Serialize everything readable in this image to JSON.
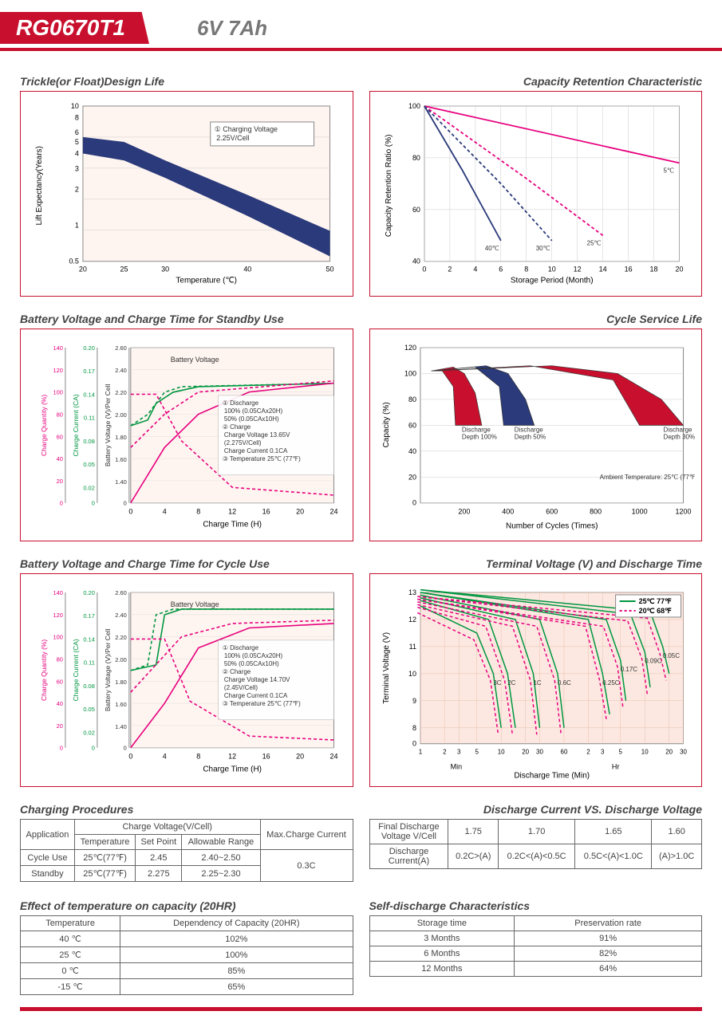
{
  "header": {
    "model": "RG0670T1",
    "rating": "6V  7Ah"
  },
  "charts": [
    {
      "id": "trickle",
      "title": "Trickle(or Float)Design Life",
      "xlabel": "Temperature (℃)",
      "ylabel": "Lift Expectancy(Years)",
      "xticks": [
        "20",
        "25",
        "30",
        "40",
        "50"
      ],
      "yticks": [
        "0.5",
        "1",
        "2",
        "3",
        "4",
        "5",
        "6",
        "8",
        "10"
      ],
      "band_color": "#2a3a7a",
      "annotation": "① Charging Voltage\n    2.25V/Cell",
      "band_top": [
        [
          20,
          5.5
        ],
        [
          25,
          5
        ],
        [
          30,
          3.5
        ],
        [
          40,
          1.8
        ],
        [
          50,
          0.9
        ]
      ],
      "band_bottom": [
        [
          20,
          4
        ],
        [
          25,
          3.5
        ],
        [
          30,
          2.5
        ],
        [
          40,
          1.2
        ],
        [
          50,
          0.55
        ]
      ]
    },
    {
      "id": "retention",
      "title": "Capacity Retention Characteristic",
      "title_align": "right",
      "xlabel": "Storage Period (Month)",
      "ylabel": "Capacity Retention Ratio (%)",
      "xticks": [
        "0",
        "2",
        "4",
        "6",
        "8",
        "10",
        "12",
        "14",
        "16",
        "18",
        "20"
      ],
      "yticks": [
        "40",
        "60",
        "80",
        "100"
      ],
      "series": [
        {
          "label": "5℃ (41℉)",
          "color": "#e6007e",
          "dash": "",
          "pts": [
            [
              0,
              100
            ],
            [
              20,
              78
            ]
          ]
        },
        {
          "label": "25℃ (77℉)",
          "color": "#e6007e",
          "dash": "4,3",
          "pts": [
            [
              0,
              100
            ],
            [
              8,
              72
            ],
            [
              14,
              50
            ]
          ]
        },
        {
          "label": "30℃ (86℉)",
          "color": "#2a3a7a",
          "dash": "4,3",
          "pts": [
            [
              0,
              100
            ],
            [
              6,
              70
            ],
            [
              10,
              48
            ]
          ]
        },
        {
          "label": "40℃ (104℉)",
          "color": "#2a3a7a",
          "dash": "",
          "pts": [
            [
              0,
              100
            ],
            [
              3,
              75
            ],
            [
              6,
              48
            ]
          ]
        }
      ]
    },
    {
      "id": "standby",
      "title": "Battery Voltage and Charge Time for Standby Use",
      "xlabel": "Charge Time (H)",
      "xticks": [
        "0",
        "4",
        "8",
        "12",
        "16",
        "20",
        "24"
      ],
      "y1": {
        "label": "Charge Quantity (%)",
        "ticks": [
          "0",
          "20",
          "40",
          "60",
          "80",
          "100",
          "120",
          "140"
        ],
        "color": "#e6007e"
      },
      "y2": {
        "label": "Charge Current (CA)",
        "ticks": [
          "0",
          "0.02",
          "0.05",
          "0.08",
          "0.11",
          "0.14",
          "0.17",
          "0.20"
        ],
        "color": "#009640"
      },
      "y3": {
        "label": "Battery Voltage (V)/Per Cell",
        "ticks": [
          "0",
          "1.40",
          "1.60",
          "1.80",
          "2.00",
          "2.20",
          "2.40",
          "2.60"
        ],
        "color": "#333"
      },
      "annotation": "① Discharge\n   100% (0.05CAx20H)\n   50% (0.05CAx10H)\n② Charge\n   Charge Voltage 13.65V\n   (2.275V/Cell)\n   Charge Current 0.1CA\n③ Temperature 25℃ (77℉)",
      "curves": {
        "voltage_solid": {
          "color": "#009640",
          "pts": [
            [
              0,
              1.9
            ],
            [
              2,
              1.95
            ],
            [
              3,
              2.1
            ],
            [
              5,
              2.2
            ],
            [
              8,
              2.25
            ],
            [
              24,
              2.28
            ]
          ]
        },
        "voltage_dash": {
          "color": "#009640",
          "dash": "4,3",
          "pts": [
            [
              0,
              1.9
            ],
            [
              2,
              2.0
            ],
            [
              4,
              2.2
            ],
            [
              6,
              2.25
            ],
            [
              24,
              2.28
            ]
          ]
        },
        "cq_solid": {
          "color": "#e6007e",
          "pts": [
            [
              0,
              0
            ],
            [
              4,
              50
            ],
            [
              8,
              80
            ],
            [
              14,
              100
            ],
            [
              24,
              108
            ]
          ]
        },
        "cq_dash": {
          "color": "#e6007e",
          "dash": "4,3",
          "pts": [
            [
              0,
              50
            ],
            [
              4,
              80
            ],
            [
              8,
              100
            ],
            [
              24,
              110
            ]
          ]
        },
        "current": {
          "color": "#e6007e",
          "dash": "4,3",
          "pts": [
            [
              0,
              0.14
            ],
            [
              3,
              0.14
            ],
            [
              6,
              0.08
            ],
            [
              12,
              0.02
            ],
            [
              24,
              0.01
            ]
          ]
        }
      }
    },
    {
      "id": "cyclelife",
      "title": "Cycle Service Life",
      "title_align": "right",
      "xlabel": "Number of Cycles (Times)",
      "ylabel": "Capacity (%)",
      "xticks": [
        "200",
        "400",
        "600",
        "800",
        "1000",
        "1200"
      ],
      "yticks": [
        "0",
        "20",
        "40",
        "60",
        "80",
        "100",
        "120"
      ],
      "ambient": "Ambient Temperature: 25℃ (77℉)",
      "wedges": [
        {
          "label": "Discharge\nDepth 100%",
          "color": "#c8102e",
          "outer": [
            [
              50,
              102
            ],
            [
              150,
              105
            ],
            [
              200,
              100
            ],
            [
              250,
              85
            ],
            [
              280,
              60
            ]
          ],
          "inner": [
            [
              160,
              60
            ],
            [
              150,
              90
            ],
            [
              100,
              102
            ],
            [
              50,
              102
            ]
          ]
        },
        {
          "label": "Discharge\nDepth 50%",
          "color": "#2a3a7a",
          "outer": [
            [
              50,
              102
            ],
            [
              300,
              106
            ],
            [
              400,
              100
            ],
            [
              480,
              80
            ],
            [
              520,
              60
            ]
          ],
          "inner": [
            [
              380,
              60
            ],
            [
              360,
              90
            ],
            [
              250,
              105
            ],
            [
              50,
              102
            ]
          ]
        },
        {
          "label": "Discharge\nDepth 30%",
          "color": "#c8102e",
          "outer": [
            [
              50,
              102
            ],
            [
              600,
              106
            ],
            [
              900,
              100
            ],
            [
              1100,
              80
            ],
            [
              1200,
              60
            ]
          ],
          "inner": [
            [
              1000,
              60
            ],
            [
              880,
              95
            ],
            [
              500,
              106
            ],
            [
              50,
              102
            ]
          ]
        }
      ]
    },
    {
      "id": "cycle",
      "title": "Battery Voltage and Charge Time for Cycle Use",
      "xlabel": "Charge Time (H)",
      "annotation": "① Discharge\n   100% (0.05CAx20H)\n   50% (0.05CAx10H)\n② Charge\n   Charge Voltage 14.70V\n   (2.45V/Cell)\n   Charge Current 0.1CA\n③ Temperature 25℃ (77℉)",
      "uses_same_axes_as": "standby",
      "curves": {
        "voltage_solid": {
          "color": "#009640",
          "pts": [
            [
              0,
              1.9
            ],
            [
              3,
              1.95
            ],
            [
              4,
              2.4
            ],
            [
              6,
              2.45
            ],
            [
              24,
              2.45
            ]
          ]
        },
        "voltage_dash": {
          "color": "#009640",
          "dash": "4,3",
          "pts": [
            [
              0,
              1.9
            ],
            [
              2,
              1.95
            ],
            [
              3,
              2.4
            ],
            [
              5,
              2.45
            ],
            [
              24,
              2.45
            ]
          ]
        },
        "cq_solid": {
          "color": "#e6007e",
          "pts": [
            [
              0,
              0
            ],
            [
              4,
              40
            ],
            [
              8,
              90
            ],
            [
              14,
              108
            ],
            [
              24,
              112
            ]
          ]
        },
        "cq_dash": {
          "color": "#e6007e",
          "dash": "4,3",
          "pts": [
            [
              0,
              50
            ],
            [
              3,
              75
            ],
            [
              6,
              100
            ],
            [
              12,
              112
            ],
            [
              24,
              115
            ]
          ]
        },
        "current": {
          "color": "#e6007e",
          "dash": "4,3",
          "pts": [
            [
              0,
              0.14
            ],
            [
              4,
              0.14
            ],
            [
              7,
              0.06
            ],
            [
              14,
              0.015
            ],
            [
              24,
              0.01
            ]
          ]
        }
      }
    },
    {
      "id": "terminal",
      "title": "Terminal Voltage (V) and Discharge Time",
      "title_align": "right",
      "xlabel": "Discharge Time (Min)",
      "ylabel": "Terminal Voltage (V)",
      "yticks": [
        "0",
        "8",
        "9",
        "10",
        "11",
        "12",
        "13"
      ],
      "legend": [
        {
          "color": "#009640",
          "style": "solid",
          "label": "25℃ 77℉"
        },
        {
          "color": "#e6007e",
          "style": "dash",
          "label": "20℃ 68℉"
        }
      ],
      "x_dual": {
        "left_label": "Min",
        "right_label": "Hr"
      },
      "rates": [
        "3C",
        "2C",
        "1C",
        "0.6C",
        "0.25C",
        "0.17C",
        "0.09C",
        "0.05C"
      ],
      "curves25": [
        {
          "rate": "3C",
          "pts": [
            [
              1,
              12.5
            ],
            [
              5,
              11.5
            ],
            [
              8,
              10
            ],
            [
              10,
              8
            ]
          ]
        },
        {
          "rate": "2C",
          "pts": [
            [
              1,
              12.7
            ],
            [
              7,
              12
            ],
            [
              12,
              10
            ],
            [
              15,
              8
            ]
          ]
        },
        {
          "rate": "1C",
          "pts": [
            [
              1,
              12.8
            ],
            [
              15,
              12
            ],
            [
              25,
              10
            ],
            [
              30,
              8
            ]
          ]
        },
        {
          "rate": "0.6C",
          "pts": [
            [
              1,
              12.9
            ],
            [
              30,
              12
            ],
            [
              50,
              10
            ],
            [
              60,
              8
            ]
          ]
        },
        {
          "rate": "0.25C",
          "pts": [
            [
              1,
              13
            ],
            [
              120,
              12
            ],
            [
              180,
              10
            ],
            [
              220,
              8.5
            ]
          ]
        },
        {
          "rate": "0.17C",
          "pts": [
            [
              1,
              13
            ],
            [
              200,
              12
            ],
            [
              300,
              10.5
            ],
            [
              350,
              9
            ]
          ]
        },
        {
          "rate": "0.09C",
          "pts": [
            [
              1,
              13.1
            ],
            [
              400,
              12.2
            ],
            [
              600,
              10.8
            ],
            [
              700,
              9.5
            ]
          ]
        },
        {
          "rate": "0.05C",
          "pts": [
            [
              1,
              13.1
            ],
            [
              700,
              12.3
            ],
            [
              1000,
              11
            ],
            [
              1200,
              10
            ]
          ]
        }
      ]
    }
  ],
  "tables": {
    "charging": {
      "title": "Charging Procedures",
      "headers": {
        "application": "Application",
        "cvgroup": "Charge Voltage(V/Cell)",
        "temp": "Temperature",
        "setpoint": "Set Point",
        "range": "Allowable Range",
        "maxcurrent": "Max.Charge Current"
      },
      "rows": [
        {
          "app": "Cycle Use",
          "temp": "25℃(77℉)",
          "set": "2.45",
          "range": "2.40~2.50"
        },
        {
          "app": "Standby",
          "temp": "25℃(77℉)",
          "set": "2.275",
          "range": "2.25~2.30"
        }
      ],
      "maxcurrent": "0.3C"
    },
    "discharge": {
      "title": "Discharge Current VS. Discharge Voltage",
      "title_align": "right",
      "h1": "Final Discharge\nVoltage V/Cell",
      "h2": "Discharge\nCurrent(A)",
      "vcols": [
        "1.75",
        "1.70",
        "1.65",
        "1.60"
      ],
      "icols": [
        "0.2C>(A)",
        "0.2C<(A)<0.5C",
        "0.5C<(A)<1.0C",
        "(A)>1.0C"
      ]
    },
    "tempcap": {
      "title": "Effect of temperature on capacity (20HR)",
      "h1": "Temperature",
      "h2": "Dependency of Capacity (20HR)",
      "rows": [
        [
          "40 ℃",
          "102%"
        ],
        [
          "25 ℃",
          "100%"
        ],
        [
          "0 ℃",
          "85%"
        ],
        [
          "-15 ℃",
          "65%"
        ]
      ]
    },
    "selfdis": {
      "title": "Self-discharge Characteristics",
      "h1": "Storage time",
      "h2": "Preservation rate",
      "rows": [
        [
          "3 Months",
          "91%"
        ],
        [
          "6 Months",
          "82%"
        ],
        [
          "12 Months",
          "64%"
        ]
      ]
    }
  }
}
